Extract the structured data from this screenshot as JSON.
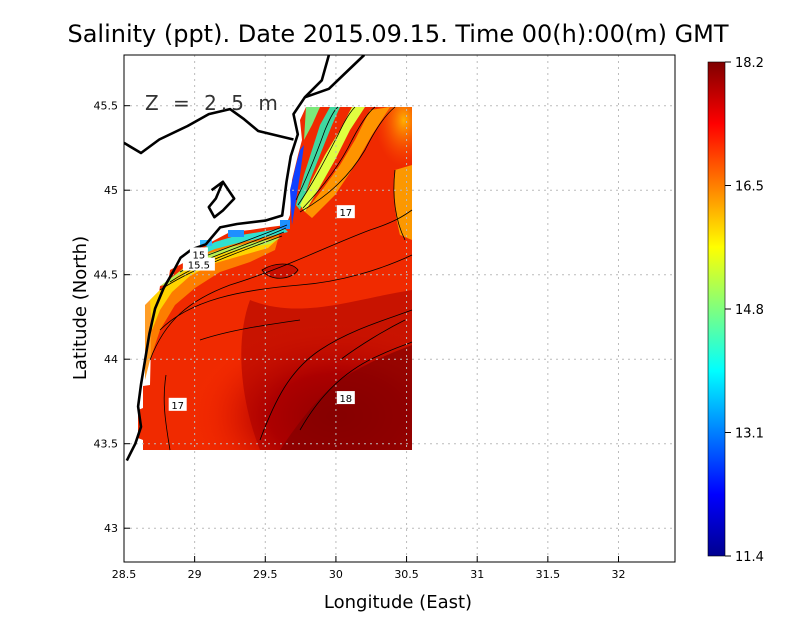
{
  "chart_data": {
    "type": "heatmap",
    "title": "Salinity (ppt). Date 2015.09.15. Time 00(h):00(m) GMT",
    "xlabel": "Longitude (East)",
    "ylabel": "Latitude (North)",
    "annotation": "Z = 2.5 m",
    "xlim": [
      28.5,
      32.4
    ],
    "ylim": [
      42.8,
      45.8
    ],
    "data_extent": {
      "lon": [
        28.65,
        30.55
      ],
      "lat": [
        43.5,
        45.5
      ]
    },
    "x_ticks": [
      {
        "value": 28.5,
        "label": "28.5"
      },
      {
        "value": 29,
        "label": "29"
      },
      {
        "value": 29.5,
        "label": "29.5"
      },
      {
        "value": 30,
        "label": "30"
      },
      {
        "value": 30.5,
        "label": "30.5"
      },
      {
        "value": 31,
        "label": "31"
      },
      {
        "value": 31.5,
        "label": "31.5"
      },
      {
        "value": 32,
        "label": "32"
      }
    ],
    "y_ticks": [
      {
        "value": 43,
        "label": "43"
      },
      {
        "value": 43.5,
        "label": "43.5"
      },
      {
        "value": 44,
        "label": "44"
      },
      {
        "value": 44.5,
        "label": "44.5"
      },
      {
        "value": 45,
        "label": "45"
      },
      {
        "value": 45.5,
        "label": "45.5"
      }
    ],
    "grid": true,
    "colorbar": {
      "min": 11.4,
      "max": 18.2,
      "ticks": [
        {
          "value": 18.2,
          "label": "18.2"
        },
        {
          "value": 16.5,
          "label": "16.5"
        },
        {
          "value": 14.8,
          "label": "14.8"
        },
        {
          "value": 13.1,
          "label": "13.1"
        },
        {
          "value": 11.4,
          "label": "11.4"
        }
      ],
      "colors": [
        "#00008f",
        "#0000ff",
        "#007fff",
        "#00ffff",
        "#7fff7f",
        "#ffff00",
        "#ff7f00",
        "#ff0000",
        "#7f0000"
      ]
    },
    "contour_labels": [
      {
        "lon": 30.07,
        "lat": 44.87,
        "text": "17"
      },
      {
        "lon": 28.88,
        "lat": 43.73,
        "text": "17"
      },
      {
        "lon": 30.07,
        "lat": 43.77,
        "text": "18"
      },
      {
        "lon": 29.03,
        "lat": 44.56,
        "text": "15.5"
      },
      {
        "lon": 29.03,
        "lat": 44.62,
        "text": "15"
      }
    ],
    "coastline": [
      [
        [
          29.95,
          45.8
        ],
        [
          29.9,
          45.65
        ],
        [
          29.78,
          45.55
        ],
        [
          29.7,
          45.45
        ],
        [
          29.73,
          45.33
        ],
        [
          29.68,
          45.2
        ],
        [
          29.65,
          45.05
        ],
        [
          29.62,
          44.85
        ],
        [
          29.5,
          44.82
        ],
        [
          29.3,
          44.8
        ],
        [
          29.18,
          44.78
        ],
        [
          29.12,
          44.72
        ],
        [
          29.08,
          44.68
        ],
        [
          28.98,
          44.65
        ],
        [
          28.9,
          44.6
        ],
        [
          28.85,
          44.52
        ],
        [
          28.78,
          44.42
        ],
        [
          28.72,
          44.3
        ],
        [
          28.68,
          44.15
        ],
        [
          28.65,
          44.0
        ],
        [
          28.62,
          43.85
        ],
        [
          28.6,
          43.72
        ],
        [
          28.62,
          43.6
        ],
        [
          28.58,
          43.5
        ],
        [
          28.52,
          43.4
        ]
      ],
      [
        [
          28.5,
          45.28
        ],
        [
          28.62,
          45.22
        ],
        [
          28.75,
          45.3
        ],
        [
          28.95,
          45.38
        ],
        [
          29.1,
          45.45
        ],
        [
          29.25,
          45.48
        ],
        [
          29.35,
          45.42
        ],
        [
          29.45,
          45.35
        ],
        [
          29.6,
          45.32
        ],
        [
          29.7,
          45.3
        ]
      ],
      [
        [
          29.78,
          45.55
        ],
        [
          29.95,
          45.6
        ],
        [
          30.1,
          45.72
        ],
        [
          30.2,
          45.8
        ]
      ],
      [
        [
          29.12,
          45.0
        ],
        [
          29.2,
          45.05
        ],
        [
          29.15,
          44.95
        ],
        [
          29.1,
          44.9
        ],
        [
          29.14,
          44.84
        ],
        [
          29.2,
          44.88
        ],
        [
          29.28,
          44.95
        ],
        [
          29.2,
          45.05
        ]
      ]
    ]
  }
}
